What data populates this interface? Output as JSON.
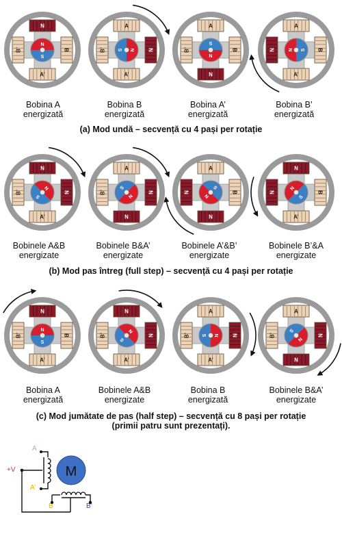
{
  "rows": [
    {
      "caption": "(a) Mod undă – secvență cu 4 pași per rotație",
      "steps": [
        {
          "l1": "Bobina A",
          "l2": "energizată",
          "active": [
            "A"
          ],
          "angle": 0,
          "arrow": "none"
        },
        {
          "l1": "Bobina B",
          "l2": "energizată",
          "active": [
            "B"
          ],
          "angle": 90,
          "arrow": "topright"
        },
        {
          "l1": "Bobina A’",
          "l2": "energizată",
          "active": [
            "A'"
          ],
          "angle": 180,
          "arrow": "none"
        },
        {
          "l1": "Bobina B’",
          "l2": "energizată",
          "active": [
            "B'"
          ],
          "angle": 270,
          "arrow": "bottomleft"
        }
      ]
    },
    {
      "caption": "(b) Mod pas întreg (full step) – secvență cu 4 pași per rotație",
      "steps": [
        {
          "l1": "Bobinele A&B",
          "l2": "energizate",
          "active": [
            "A",
            "B"
          ],
          "angle": 45,
          "arrow": "topright"
        },
        {
          "l1": "Bobinele B&A’",
          "l2": "energizate",
          "active": [
            "B",
            "A'"
          ],
          "angle": 135,
          "arrow": "topright"
        },
        {
          "l1": "Bobinele A’&B’",
          "l2": "energizate",
          "active": [
            "A'",
            "B'"
          ],
          "angle": 225,
          "arrow": "bottomleft"
        },
        {
          "l1": "Bobinele B’&A",
          "l2": "energizate",
          "active": [
            "B'",
            "A"
          ],
          "angle": 315,
          "arrow": "left"
        }
      ]
    },
    {
      "caption": "(c) Mod jumătate de pas (half step) – secvență cu 8 pași per rotație",
      "caption2": "(primii patru sunt prezentați).",
      "steps": [
        {
          "l1": "Bobina A",
          "l2": "energizată",
          "active": [
            "A"
          ],
          "angle": 0,
          "arrow": "topleft"
        },
        {
          "l1": "Bobinele A&B",
          "l2": "energizate",
          "active": [
            "A",
            "B"
          ],
          "angle": 45,
          "arrow": "top"
        },
        {
          "l1": "Bobina B",
          "l2": "energizată",
          "active": [
            "B"
          ],
          "angle": 90,
          "arrow": "right"
        },
        {
          "l1": "Bobinele B&A’",
          "l2": "energizate",
          "active": [
            "B",
            "A'"
          ],
          "angle": 135,
          "arrow": "bottomright"
        }
      ]
    }
  ],
  "coils": {
    "A": "A",
    "B": "B",
    "A'": "A’",
    "B'": "B’"
  },
  "magnet": {
    "n": "N",
    "s": "S"
  },
  "schematic": {
    "motor": "M",
    "vplus": "+V",
    "a": "A",
    "a_prime": "A’",
    "b": "B",
    "b_prime": "B’"
  },
  "colors": {
    "north": "#d81e2c",
    "south": "#3b7fc4",
    "energized": "#8a1a2a",
    "coil_idle": "#ecd3b5",
    "ring": "#9a9a9a",
    "motor": "#3d6fc4",
    "label_a": "#c49bd1",
    "label_b": "#e0b400",
    "label_bprime": "#2b4fa8",
    "vplus": "#c0306a"
  }
}
